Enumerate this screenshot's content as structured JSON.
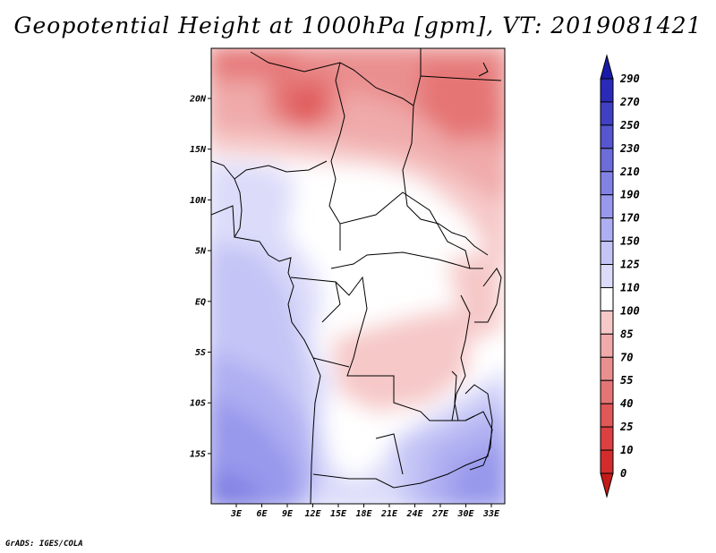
{
  "title": "Geopotential Height at 1000hPa [gpm], VT: 2019081421",
  "footer": "GrADS: IGES/COLA",
  "map": {
    "lat_range": [
      -20,
      24
    ],
    "lon_range": [
      0,
      35
    ],
    "lat_ticks": [
      "20N",
      "15N",
      "10N",
      "5N",
      "EQ",
      "5S",
      "10S",
      "15S"
    ],
    "lon_ticks": [
      "3E",
      "6E",
      "9E",
      "12E",
      "15E",
      "18E",
      "21E",
      "24E",
      "27E",
      "30E",
      "33E"
    ]
  },
  "colorbar": {
    "levels": [
      "0",
      "10",
      "25",
      "40",
      "55",
      "70",
      "85",
      "100",
      "110",
      "125",
      "150",
      "170",
      "190",
      "210",
      "230",
      "250",
      "270",
      "290"
    ],
    "colors": [
      "#c41a1a",
      "#d42c2c",
      "#dc4040",
      "#e05858",
      "#e57575",
      "#ea8f8f",
      "#f0aaaa",
      "#f6c8c8",
      "#ffffff",
      "#dcdcfa",
      "#c4c4f6",
      "#aeaef2",
      "#9898ec",
      "#8282e4",
      "#6c6cda",
      "#5656d0",
      "#4040c4",
      "#2a2ab8",
      "#1a1aa8"
    ]
  }
}
